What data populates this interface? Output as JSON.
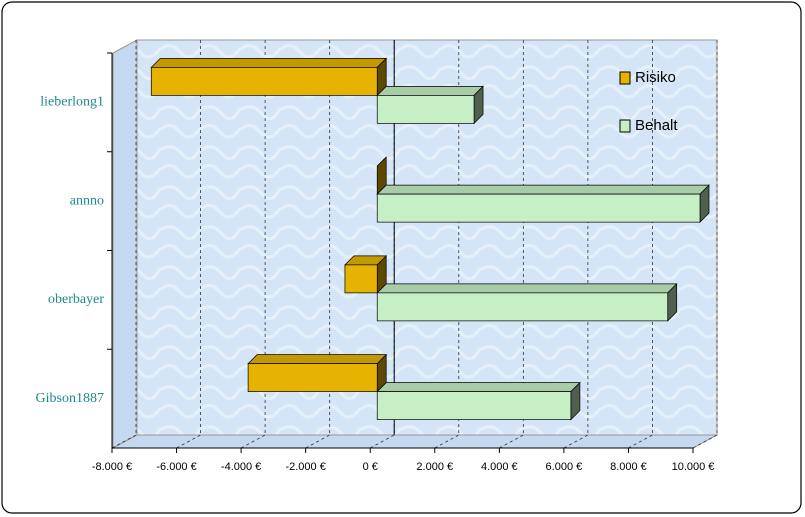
{
  "chart_data": {
    "type": "bar",
    "categories": [
      "lieberlong1",
      "annno",
      "oberbayer",
      "Gibson1887"
    ],
    "series": [
      {
        "name": "Risiko",
        "color": "#e6b400",
        "values": [
          -7000,
          0,
          -1000,
          -4000
        ]
      },
      {
        "name": "Behalt",
        "color": "#c6efc6",
        "values": [
          3000,
          10000,
          9000,
          6000
        ]
      }
    ],
    "xlim": [
      -8000,
      10000
    ],
    "xticks": [
      {
        "value": -8000,
        "label": "-8.000 €"
      },
      {
        "value": -6000,
        "label": "-6.000 €"
      },
      {
        "value": -4000,
        "label": "-4.000 €"
      },
      {
        "value": -2000,
        "label": "-2.000 €"
      },
      {
        "value": 0,
        "label": "0 €"
      },
      {
        "value": 2000,
        "label": "2.000 €"
      },
      {
        "value": 4000,
        "label": "4.000 €"
      },
      {
        "value": 6000,
        "label": "6.000 €"
      },
      {
        "value": 8000,
        "label": "8.000 €"
      },
      {
        "value": 10000,
        "label": "10.000 €"
      }
    ],
    "grid": true,
    "legend": "top-right"
  }
}
